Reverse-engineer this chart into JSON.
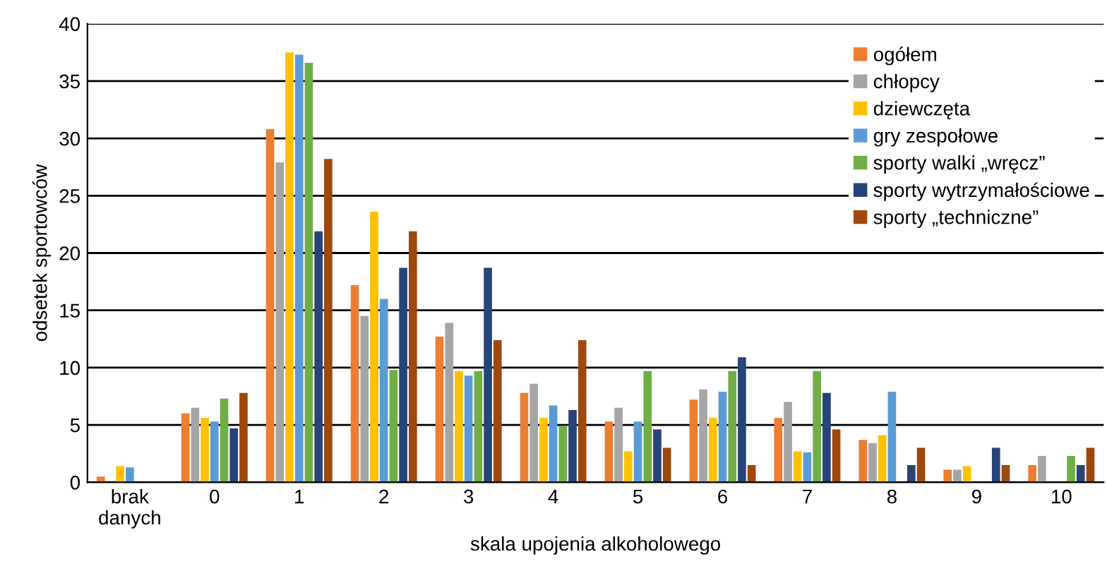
{
  "chart_data": {
    "type": "bar",
    "xlabel": "skala upojenia alkoholowego",
    "ylabel": "odsetek sportowców",
    "categories": [
      "brak\ndanych",
      "0",
      "1",
      "2",
      "3",
      "4",
      "5",
      "6",
      "7",
      "8",
      "9",
      "10"
    ],
    "ylim": [
      0,
      40
    ],
    "yticks": [
      0,
      5,
      10,
      15,
      20,
      25,
      30,
      35,
      40
    ],
    "grid": "y",
    "legend": "top right",
    "series": [
      {
        "name": "ogółem",
        "color": "#ed7d31",
        "values": [
          0.5,
          6.0,
          30.8,
          17.2,
          12.7,
          7.8,
          5.3,
          7.2,
          5.6,
          3.7,
          1.1,
          1.5
        ]
      },
      {
        "name": "chłopcy",
        "color": "#a5a5a5",
        "values": [
          null,
          6.5,
          27.9,
          14.5,
          13.9,
          8.6,
          6.5,
          8.1,
          7.0,
          3.4,
          1.1,
          2.3
        ]
      },
      {
        "name": "dziewczęta",
        "color": "#ffc000",
        "values": [
          1.4,
          5.6,
          37.5,
          23.6,
          9.7,
          5.6,
          2.7,
          5.6,
          2.7,
          4.1,
          1.4,
          null
        ]
      },
      {
        "name": "gry zespołowe",
        "color": "#5b9bd5",
        "values": [
          1.3,
          5.3,
          37.3,
          16.0,
          9.3,
          6.7,
          5.3,
          7.9,
          2.6,
          7.9,
          null,
          null
        ]
      },
      {
        "name": "sporty walki „wręcz”",
        "color": "#70ad47",
        "values": [
          null,
          7.3,
          36.6,
          9.8,
          9.7,
          4.9,
          9.7,
          9.7,
          9.7,
          null,
          null,
          2.3
        ]
      },
      {
        "name": "sporty wytrzymałościowe",
        "color": "#264478",
        "values": [
          null,
          4.7,
          21.9,
          18.7,
          18.7,
          6.3,
          4.6,
          10.9,
          7.8,
          1.5,
          3.0,
          1.5
        ]
      },
      {
        "name": "sporty „techniczne”",
        "color": "#9e480e",
        "values": [
          null,
          7.8,
          28.2,
          21.9,
          12.4,
          12.4,
          3.0,
          1.5,
          4.6,
          3.0,
          1.5,
          3.0
        ]
      }
    ]
  }
}
